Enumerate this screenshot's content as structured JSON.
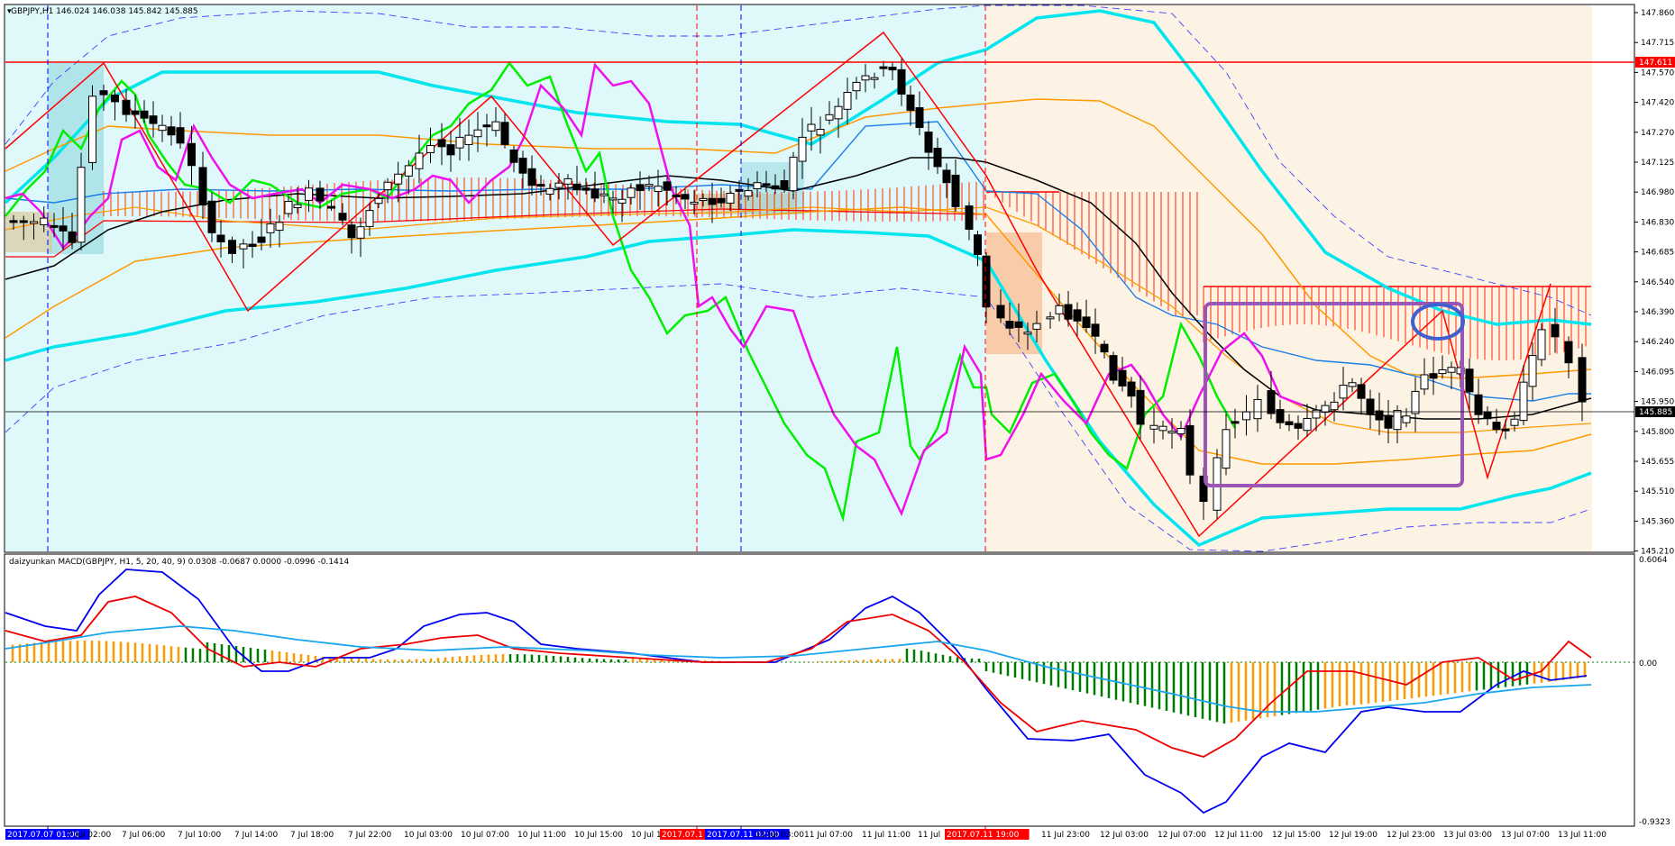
{
  "main_panel": {
    "header": "GBPJPY,H1  146.024 146.038 145.842 145.885",
    "price_axis_labels": [
      "147.860",
      "147.715",
      "147.570",
      "147.420",
      "147.270",
      "147.125",
      "146.980",
      "146.830",
      "146.685",
      "146.540",
      "146.390",
      "146.240",
      "146.095",
      "145.950",
      "145.800",
      "145.655",
      "145.510",
      "145.360",
      "145.210"
    ],
    "red_line_label": "147.611",
    "current_price_label": "145.885",
    "colors": {
      "zone_left": "#dff9fb",
      "zone_right": "#fdf3e4",
      "bollinger_inner": "#00e5ee",
      "bollinger_outer": "#4040ff",
      "orange_band": "#ff9900",
      "ma_black": "#000000",
      "fast_green": "#00ee00",
      "fast_magenta": "#ee11ee",
      "zigzag_red": "#ff0000",
      "box_purple": "#9b55b5",
      "ellipse_blue": "#4060d0"
    }
  },
  "macd_panel": {
    "header": "daizyunkan MACD(GBPJPY, H1, 5, 20, 40, 9) 0.0308 -0.0687 0.0000 -0.0996 -0.1414",
    "axis_labels": [
      "0.6064",
      "0.00",
      "-0.9323"
    ],
    "colors": {
      "line_blue": "#0000ee",
      "line_red": "#ee0000",
      "signal": "#1aa6ee",
      "hist_green": "#007a00",
      "hist_orange": "#ff9900"
    }
  },
  "time_axis": {
    "labels": [
      "2017.07.07 01:00",
      "7 Jul 02:00",
      "7 Jul 06:00",
      "7 Jul 10:00",
      "7 Jul 14:00",
      "7 Jul 18:00",
      "7 Jul 22:00",
      "10 Jul 03:00",
      "10 Jul 07:00",
      "10 Jul 11:00",
      "10 Jul 15:00",
      "10 Jul 19:00",
      "2017.07.1",
      "2017.07.11 02:00",
      "11 Jul 03:00",
      "11 Jul 07:00",
      "11 Jul 11:00",
      "11 Jul",
      "2017.07.11 19:00",
      "11 Jul 23:00",
      "12 Jul 03:00",
      "12 Jul 07:00",
      "12 Jul 11:00",
      "12 Jul 15:00",
      "12 Jul 19:00",
      "12 Jul 23:00",
      "13 Jul 03:00",
      "13 Jul 07:00",
      "13 Jul 11:00"
    ],
    "highlighted": [
      {
        "text": "2017.07.07 01:00",
        "bg": "#0000ff"
      },
      {
        "text": "2017.07.1",
        "bg": "#ff0000"
      },
      {
        "text": "2017.07.11 02:00",
        "bg": "#0000ff"
      },
      {
        "text": "2017.07.11 19:00",
        "bg": "#ff0000"
      }
    ]
  }
}
